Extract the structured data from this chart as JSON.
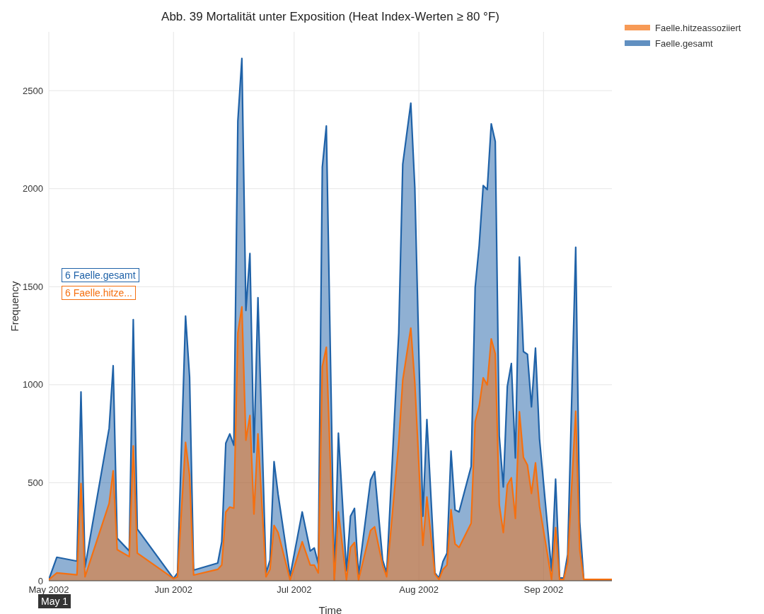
{
  "chart_data": {
    "type": "area",
    "title": "Abb. 39 Mortalität unter Exposition (Heat Index-Werten ≥ 80 °F)",
    "xlabel": "Time",
    "ylabel": "Frequency",
    "x": [
      "2002-05-01",
      "2002-05-03",
      "2002-05-08",
      "2002-05-09",
      "2002-05-10",
      "2002-05-16",
      "2002-05-17",
      "2002-05-18",
      "2002-05-21",
      "2002-05-22",
      "2002-05-23",
      "2002-06-01",
      "2002-06-02",
      "2002-06-04",
      "2002-06-05",
      "2002-06-06",
      "2002-06-12",
      "2002-06-13",
      "2002-06-14",
      "2002-06-15",
      "2002-06-16",
      "2002-06-17",
      "2002-06-18",
      "2002-06-19",
      "2002-06-20",
      "2002-06-21",
      "2002-06-22",
      "2002-06-24",
      "2002-06-25",
      "2002-06-26",
      "2002-06-27",
      "2002-06-30",
      "2002-07-03",
      "2002-07-05",
      "2002-07-06",
      "2002-07-07",
      "2002-07-08",
      "2002-07-09",
      "2002-07-11",
      "2002-07-12",
      "2002-07-14",
      "2002-07-15",
      "2002-07-16",
      "2002-07-17",
      "2002-07-20",
      "2002-07-21",
      "2002-07-23",
      "2002-07-24",
      "2002-07-27",
      "2002-07-28",
      "2002-07-30",
      "2002-07-31",
      "2002-08-02",
      "2002-08-03",
      "2002-08-05",
      "2002-08-06",
      "2002-08-07",
      "2002-08-08",
      "2002-08-09",
      "2002-08-10",
      "2002-08-11",
      "2002-08-14",
      "2002-08-15",
      "2002-08-16",
      "2002-08-17",
      "2002-08-18",
      "2002-08-19",
      "2002-08-20",
      "2002-08-21",
      "2002-08-22",
      "2002-08-23",
      "2002-08-24",
      "2002-08-25",
      "2002-08-26",
      "2002-08-27",
      "2002-08-28",
      "2002-08-29",
      "2002-08-30",
      "2002-08-31",
      "2002-09-03",
      "2002-09-04",
      "2002-09-05",
      "2002-09-06",
      "2002-09-07",
      "2002-09-09",
      "2002-09-10",
      "2002-09-11",
      "2002-09-18"
    ],
    "series": [
      {
        "name": "Faelle.hitzeassoziiert",
        "color": "#f57010",
        "values": [
          6,
          40,
          30,
          496,
          20,
          395,
          561,
          159,
          123,
          688,
          141,
          11,
          20,
          706,
          536,
          29,
          58,
          80,
          351,
          376,
          370,
          1264,
          1397,
          717,
          843,
          340,
          749,
          20,
          58,
          282,
          246,
          4,
          199,
          80,
          80,
          40,
          1093,
          1191,
          4,
          351,
          4,
          170,
          195,
          4,
          257,
          275,
          80,
          20,
          702,
          1024,
          1289,
          1010,
          181,
          427,
          33,
          7,
          58,
          80,
          362,
          188,
          170,
          293,
          811,
          891,
          1035,
          999,
          1234,
          1158,
          387,
          246,
          489,
          525,
          318,
          862,
          630,
          590,
          445,
          601,
          380,
          7,
          271,
          7,
          7,
          94,
          865,
          159,
          7,
          7
        ]
      },
      {
        "name": "Faelle.gesamt",
        "color": "#1f62a8",
        "values": [
          6,
          120,
          100,
          963,
          69,
          778,
          1097,
          217,
          152,
          1332,
          264,
          11,
          40,
          1350,
          1039,
          54,
          90,
          199,
          702,
          749,
          691,
          2345,
          2664,
          1379,
          1669,
          655,
          1444,
          40,
          105,
          608,
          442,
          25,
          351,
          152,
          167,
          87,
          2110,
          2320,
          4,
          753,
          51,
          329,
          369,
          29,
          514,
          557,
          105,
          40,
          1264,
          2125,
          2436,
          2005,
          329,
          822,
          40,
          14,
          98,
          141,
          662,
          362,
          351,
          583,
          1495,
          1709,
          2016,
          1995,
          2331,
          2241,
          738,
          478,
          992,
          1108,
          626,
          1651,
          1169,
          1155,
          887,
          1187,
          724,
          51,
          518,
          14,
          14,
          134,
          1701,
          300,
          7,
          7
        ]
      }
    ],
    "xlim": [
      "2002-05-01",
      "2002-09-18"
    ],
    "xticks": [
      {
        "value": "2002-05-01",
        "label": "May 2002"
      },
      {
        "value": "2002-06-01",
        "label": "Jun 2002"
      },
      {
        "value": "2002-07-01",
        "label": "Jul 2002"
      },
      {
        "value": "2002-08-01",
        "label": "Aug 2002"
      },
      {
        "value": "2002-09-01",
        "label": "Sep 2002"
      }
    ],
    "ylim": [
      0,
      2800
    ],
    "yticks": [
      0,
      500,
      1000,
      1500,
      2000,
      2500
    ],
    "grid": true,
    "legend": "top right",
    "annotations": [
      "6 Faelle.gesamt",
      "6 Faelle.hitze...",
      "May 1"
    ]
  }
}
